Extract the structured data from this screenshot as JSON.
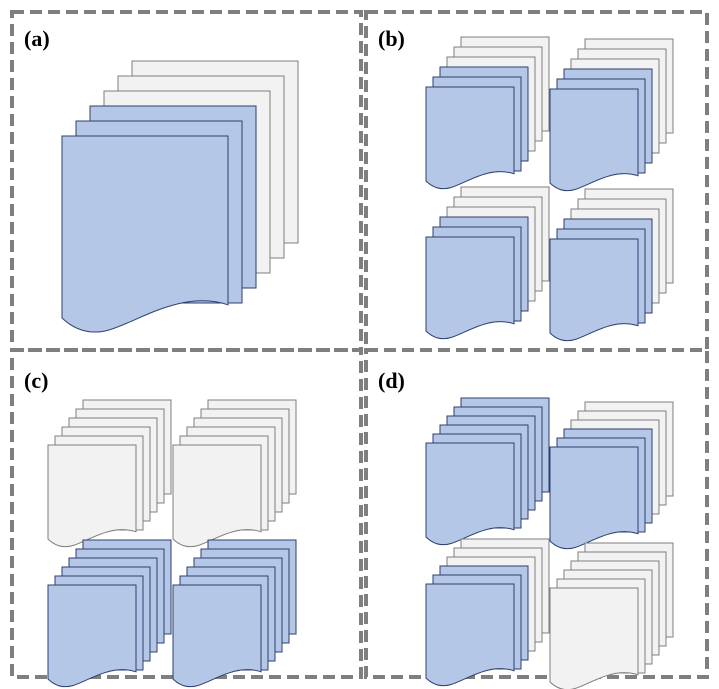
{
  "colors": {
    "blue_fill": "#b4c7e7",
    "blue_stroke": "#2f3f6f",
    "gray_fill": "#f2f2f2",
    "gray_stroke": "#7f7f7f",
    "dash_border": "#7f7f7f"
  },
  "panels": [
    {
      "label": "(a)",
      "stacks": [
        {
          "sheets": [
            "gray",
            "gray",
            "gray",
            "blue",
            "blue",
            "blue"
          ]
        }
      ]
    },
    {
      "label": "(b)",
      "stacks": [
        {
          "sheets": [
            "gray",
            "gray",
            "gray",
            "blue",
            "blue",
            "blue"
          ]
        },
        {
          "sheets": [
            "gray",
            "gray",
            "gray",
            "blue",
            "blue",
            "blue"
          ]
        },
        {
          "sheets": [
            "gray",
            "gray",
            "gray",
            "blue",
            "blue",
            "blue"
          ]
        },
        {
          "sheets": [
            "gray",
            "gray",
            "gray",
            "blue",
            "blue",
            "blue"
          ]
        }
      ]
    },
    {
      "label": "(c)",
      "stacks": [
        {
          "sheets": [
            "gray",
            "gray",
            "gray",
            "gray",
            "gray",
            "gray"
          ]
        },
        {
          "sheets": [
            "gray",
            "gray",
            "gray",
            "gray",
            "gray",
            "gray"
          ]
        },
        {
          "sheets": [
            "blue",
            "blue",
            "blue",
            "blue",
            "blue",
            "blue"
          ]
        },
        {
          "sheets": [
            "blue",
            "blue",
            "blue",
            "blue",
            "blue",
            "blue"
          ]
        }
      ]
    },
    {
      "label": "(d)",
      "stacks": [
        {
          "sheets": [
            "blue",
            "blue",
            "blue",
            "blue",
            "blue",
            "blue"
          ]
        },
        {
          "sheets": [
            "gray",
            "gray",
            "gray",
            "blue",
            "blue",
            "blue"
          ]
        },
        {
          "sheets": [
            "gray",
            "gray",
            "gray",
            "blue",
            "blue",
            "blue"
          ]
        },
        {
          "sheets": [
            "gray",
            "gray",
            "gray",
            "gray",
            "gray",
            "gray"
          ]
        }
      ]
    }
  ]
}
